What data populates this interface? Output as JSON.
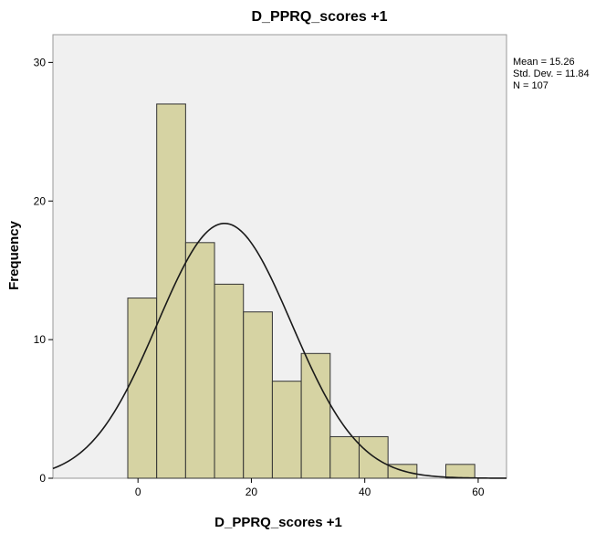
{
  "chart_data": {
    "type": "bar",
    "subtype": "histogram",
    "title": "D_PPRQ_scores +1",
    "xlabel": "D_PPRQ_scores +1",
    "ylabel": "Frequency",
    "xlim": [
      -15,
      65
    ],
    "ylim": [
      0,
      32
    ],
    "xticks": [
      0,
      20,
      40,
      60
    ],
    "yticks": [
      0,
      10,
      20,
      30
    ],
    "bin_width": 5.1,
    "bins": [
      {
        "start": -1.8,
        "end": 3.3,
        "count": 13
      },
      {
        "start": 3.3,
        "end": 8.4,
        "count": 27
      },
      {
        "start": 8.4,
        "end": 13.5,
        "count": 17
      },
      {
        "start": 13.5,
        "end": 18.6,
        "count": 14
      },
      {
        "start": 18.6,
        "end": 23.7,
        "count": 12
      },
      {
        "start": 23.7,
        "end": 28.8,
        "count": 7
      },
      {
        "start": 28.8,
        "end": 33.9,
        "count": 9
      },
      {
        "start": 33.9,
        "end": 39.0,
        "count": 3
      },
      {
        "start": 39.0,
        "end": 44.1,
        "count": 3
      },
      {
        "start": 44.1,
        "end": 49.2,
        "count": 1
      },
      {
        "start": 49.2,
        "end": 54.3,
        "count": 0
      },
      {
        "start": 54.3,
        "end": 59.4,
        "count": 1
      }
    ],
    "normal_curve": {
      "mean": 15.26,
      "sd": 11.84,
      "n": 107
    },
    "stats": {
      "mean": "Mean = 15.26",
      "sd": "Std. Dev. = 11.84",
      "n": "N = 107"
    },
    "colors": {
      "bar_fill": "#d6d3a3",
      "bar_stroke": "#333333",
      "plot_background": "#f0f0f0",
      "curve": "#1a1a1a"
    },
    "grid": false,
    "legend": "none"
  }
}
